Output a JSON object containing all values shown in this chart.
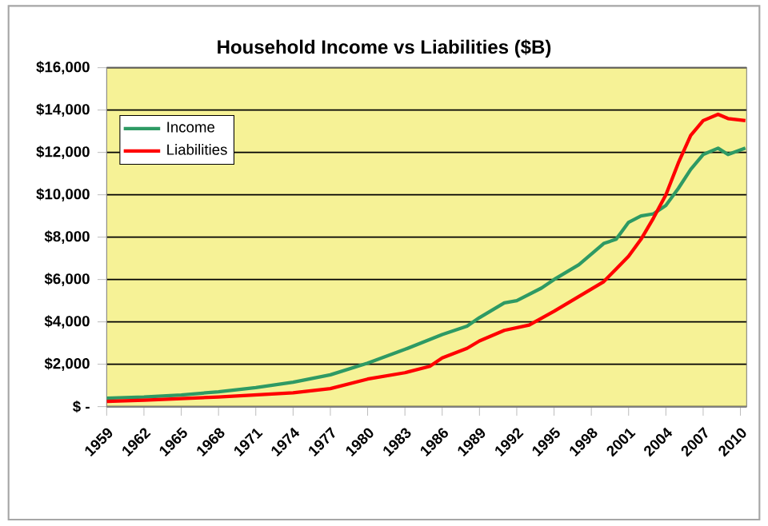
{
  "chart_data": {
    "type": "line",
    "title": "Household Income vs Liabilities ($B)",
    "xlim": [
      1959,
      2010.5
    ],
    "xticks": [
      1959,
      1962,
      1965,
      1968,
      1971,
      1974,
      1977,
      1980,
      1983,
      1986,
      1989,
      1992,
      1995,
      1998,
      2001,
      2004,
      2007,
      2010
    ],
    "ylim": [
      0,
      16000
    ],
    "yticks": [
      {
        "value": 0,
        "label": "$ -"
      },
      {
        "value": 2000,
        "label": "$2,000"
      },
      {
        "value": 4000,
        "label": "$4,000"
      },
      {
        "value": 6000,
        "label": "$6,000"
      },
      {
        "value": 8000,
        "label": "$8,000"
      },
      {
        "value": 10000,
        "label": "$10,000"
      },
      {
        "value": 12000,
        "label": "$12,000"
      },
      {
        "value": 14000,
        "label": "$14,000"
      },
      {
        "value": 16000,
        "label": "$16,000"
      }
    ],
    "grid": "y",
    "legend": "top left",
    "marker": "none",
    "line_style": "solid",
    "series": [
      {
        "name": "Income",
        "color": "#2e9a64",
        "x": [
          1959,
          1962,
          1965,
          1968,
          1971,
          1974,
          1977,
          1980,
          1983,
          1986,
          1988,
          1989,
          1991,
          1992,
          1994,
          1995,
          1997,
          1999,
          2000,
          2001,
          2002,
          2003,
          2004,
          2005,
          2006,
          2007,
          2008.2,
          2009,
          2010.4
        ],
        "values": [
          400,
          450,
          550,
          700,
          900,
          1150,
          1500,
          2050,
          2700,
          3400,
          3800,
          4200,
          4900,
          5000,
          5600,
          6000,
          6700,
          7700,
          7900,
          8700,
          9000,
          9100,
          9500,
          10300,
          11200,
          11900,
          12200,
          11900,
          12200
        ]
      },
      {
        "name": "Liabilities",
        "color": "#ff0000",
        "x": [
          1959,
          1962,
          1965,
          1968,
          1971,
          1974,
          1977,
          1980,
          1983,
          1985,
          1986,
          1988,
          1989,
          1991,
          1993,
          1995,
          1997,
          1999,
          2000,
          2001,
          2002,
          2003,
          2004,
          2005,
          2006,
          2007,
          2008.2,
          2009,
          2010.4
        ],
        "values": [
          250,
          300,
          380,
          450,
          550,
          650,
          850,
          1300,
          1600,
          1900,
          2300,
          2750,
          3100,
          3600,
          3850,
          4500,
          5200,
          5900,
          6500,
          7100,
          7900,
          8900,
          10000,
          11500,
          12800,
          13500,
          13800,
          13600,
          13500
        ]
      }
    ]
  }
}
